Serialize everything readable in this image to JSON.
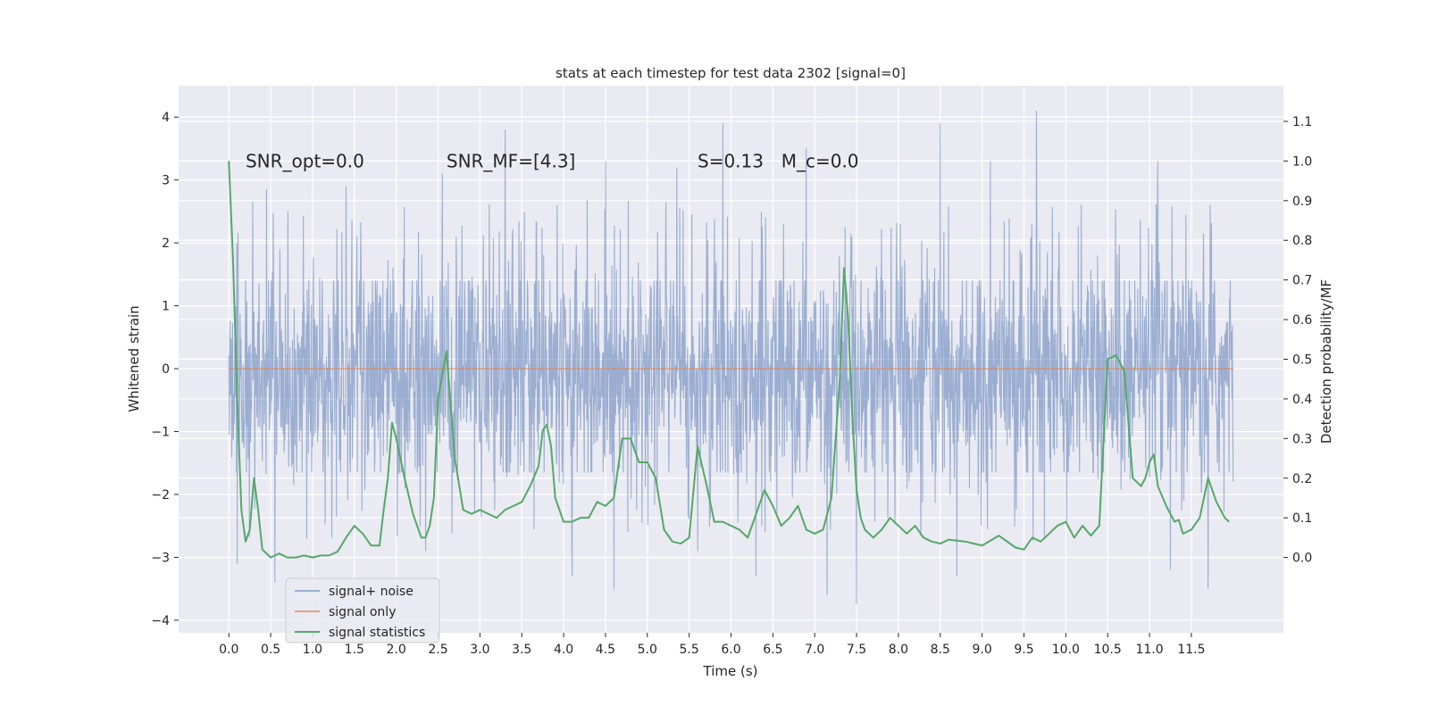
{
  "chart_data": {
    "type": "line",
    "title": "stats at each timestep for test data 2302 [signal=0]",
    "xlabel": "Time (s)",
    "ylabel_left": "Whitened strain",
    "ylabel_right": "Detection probability/MF",
    "xlim": [
      -0.6,
      12.6
    ],
    "ylim_left": [
      -4.2,
      4.5
    ],
    "ylim_right": [
      -0.19,
      1.19
    ],
    "grid": true,
    "legend_position": "lower-left",
    "x_ticks": [
      0.0,
      0.5,
      1.0,
      1.5,
      2.0,
      2.5,
      3.0,
      3.5,
      4.0,
      4.5,
      5.0,
      5.5,
      6.0,
      6.5,
      7.0,
      7.5,
      8.0,
      8.5,
      9.0,
      9.5,
      10.0,
      10.5,
      11.0,
      11.5
    ],
    "x_tick_labels": [
      "0.0",
      "0.5",
      "1.0",
      "1.5",
      "2.0",
      "2.5",
      "3.0",
      "3.5",
      "4.0",
      "4.5",
      "5.0",
      "5.5",
      "6.0",
      "6.5",
      "7.0",
      "7.5",
      "8.0",
      "8.5",
      "9.0",
      "9.5",
      "10.0",
      "10.5",
      "11.0",
      "11.5"
    ],
    "y_left_ticks": [
      -4,
      -3,
      -2,
      -1,
      0,
      1,
      2,
      3,
      4
    ],
    "y_left_tick_labels": [
      "−4",
      "−3",
      "−2",
      "−1",
      "0",
      "1",
      "2",
      "3",
      "4"
    ],
    "y_right_ticks": [
      0.0,
      0.1,
      0.2,
      0.3,
      0.4,
      0.5,
      0.6,
      0.7,
      0.8,
      0.9,
      1.0,
      1.1
    ],
    "y_right_tick_labels": [
      "0.0",
      "0.1",
      "0.2",
      "0.3",
      "0.4",
      "0.5",
      "0.6",
      "0.7",
      "0.8",
      "0.9",
      "1.0",
      "1.1"
    ],
    "annotations": [
      {
        "text": "SNR_opt=0.0",
        "x": 0.2,
        "y": 3.3
      },
      {
        "text": "SNR_MF=[4.3]",
        "x": 2.6,
        "y": 3.3
      },
      {
        "text": "S=0.13",
        "x": 5.6,
        "y": 3.3
      },
      {
        "text": "M_c=0.0",
        "x": 6.6,
        "y": 3.3
      }
    ],
    "series": [
      {
        "name": "signal+ noise",
        "color": "#4c72b0",
        "opacity": 0.5,
        "axis": "left",
        "x_range": [
          0.0,
          12.0
        ],
        "envelope_typical": [
          -1.65,
          1.4
        ],
        "peaks_high": [
          [
            0.1,
            2.5
          ],
          [
            0.45,
            2.85
          ],
          [
            1.4,
            2.9
          ],
          [
            2.55,
            3.1
          ],
          [
            3.3,
            3.8
          ],
          [
            4.5,
            3.3
          ],
          [
            5.35,
            3.2
          ],
          [
            5.9,
            3.9
          ],
          [
            6.9,
            3.5
          ],
          [
            8.5,
            3.9
          ],
          [
            9.1,
            3.3
          ],
          [
            9.65,
            4.1
          ],
          [
            11.1,
            3.3
          ]
        ],
        "peaks_low": [
          [
            0.1,
            -3.1
          ],
          [
            0.55,
            -3.4
          ],
          [
            2.35,
            -2.9
          ],
          [
            4.1,
            -3.3
          ],
          [
            4.6,
            -3.5
          ],
          [
            5.6,
            -2.9
          ],
          [
            6.3,
            -3.3
          ],
          [
            7.15,
            -3.6
          ],
          [
            7.5,
            -3.75
          ],
          [
            8.7,
            -3.3
          ],
          [
            11.25,
            -3.2
          ],
          [
            11.7,
            -3.5
          ]
        ]
      },
      {
        "name": "signal only",
        "color": "#dd8452",
        "axis": "left",
        "x": [
          0.0,
          12.0
        ],
        "values": [
          0.0,
          0.0
        ]
      },
      {
        "name": "signal statistics",
        "color": "#55a868",
        "axis": "right",
        "x": [
          0.0,
          0.05,
          0.1,
          0.15,
          0.2,
          0.25,
          0.3,
          0.35,
          0.4,
          0.5,
          0.6,
          0.7,
          0.8,
          0.9,
          1.0,
          1.1,
          1.2,
          1.3,
          1.4,
          1.5,
          1.55,
          1.6,
          1.7,
          1.8,
          1.85,
          1.9,
          1.95,
          2.0,
          2.1,
          2.2,
          2.3,
          2.35,
          2.4,
          2.45,
          2.5,
          2.6,
          2.7,
          2.8,
          2.9,
          3.0,
          3.1,
          3.2,
          3.3,
          3.4,
          3.5,
          3.6,
          3.7,
          3.75,
          3.8,
          3.85,
          3.9,
          4.0,
          4.1,
          4.2,
          4.3,
          4.4,
          4.5,
          4.6,
          4.7,
          4.8,
          4.9,
          5.0,
          5.1,
          5.2,
          5.3,
          5.4,
          5.5,
          5.6,
          5.7,
          5.8,
          5.9,
          6.0,
          6.1,
          6.2,
          6.3,
          6.4,
          6.5,
          6.6,
          6.7,
          6.8,
          6.9,
          7.0,
          7.1,
          7.2,
          7.3,
          7.35,
          7.4,
          7.45,
          7.5,
          7.55,
          7.6,
          7.7,
          7.8,
          7.9,
          8.0,
          8.1,
          8.2,
          8.3,
          8.4,
          8.5,
          8.6,
          8.8,
          9.0,
          9.2,
          9.4,
          9.5,
          9.6,
          9.7,
          9.8,
          9.9,
          10.0,
          10.1,
          10.2,
          10.3,
          10.4,
          10.5,
          10.6,
          10.7,
          10.8,
          10.9,
          10.95,
          11.0,
          11.05,
          11.1,
          11.2,
          11.3,
          11.35,
          11.4,
          11.5,
          11.6,
          11.7,
          11.8,
          11.9,
          11.95
        ],
        "values": [
          1.0,
          0.75,
          0.4,
          0.12,
          0.04,
          0.07,
          0.2,
          0.12,
          0.02,
          0.0,
          0.01,
          0.0,
          0.0,
          0.005,
          0.0,
          0.005,
          0.005,
          0.015,
          0.05,
          0.08,
          0.07,
          0.06,
          0.03,
          0.03,
          0.12,
          0.2,
          0.34,
          0.3,
          0.2,
          0.11,
          0.05,
          0.05,
          0.08,
          0.15,
          0.4,
          0.52,
          0.25,
          0.12,
          0.11,
          0.12,
          0.11,
          0.1,
          0.12,
          0.13,
          0.14,
          0.18,
          0.23,
          0.32,
          0.335,
          0.28,
          0.15,
          0.09,
          0.09,
          0.1,
          0.1,
          0.14,
          0.13,
          0.15,
          0.3,
          0.3,
          0.24,
          0.24,
          0.2,
          0.07,
          0.04,
          0.035,
          0.05,
          0.28,
          0.19,
          0.09,
          0.09,
          0.08,
          0.07,
          0.05,
          0.11,
          0.17,
          0.13,
          0.08,
          0.1,
          0.13,
          0.07,
          0.06,
          0.07,
          0.15,
          0.45,
          0.73,
          0.6,
          0.35,
          0.17,
          0.1,
          0.07,
          0.05,
          0.07,
          0.1,
          0.08,
          0.06,
          0.08,
          0.05,
          0.04,
          0.035,
          0.045,
          0.04,
          0.03,
          0.055,
          0.025,
          0.02,
          0.05,
          0.04,
          0.06,
          0.08,
          0.09,
          0.05,
          0.08,
          0.055,
          0.08,
          0.5,
          0.51,
          0.47,
          0.2,
          0.18,
          0.2,
          0.24,
          0.26,
          0.18,
          0.13,
          0.09,
          0.095,
          0.06,
          0.07,
          0.1,
          0.2,
          0.14,
          0.1,
          0.09
        ]
      }
    ]
  }
}
